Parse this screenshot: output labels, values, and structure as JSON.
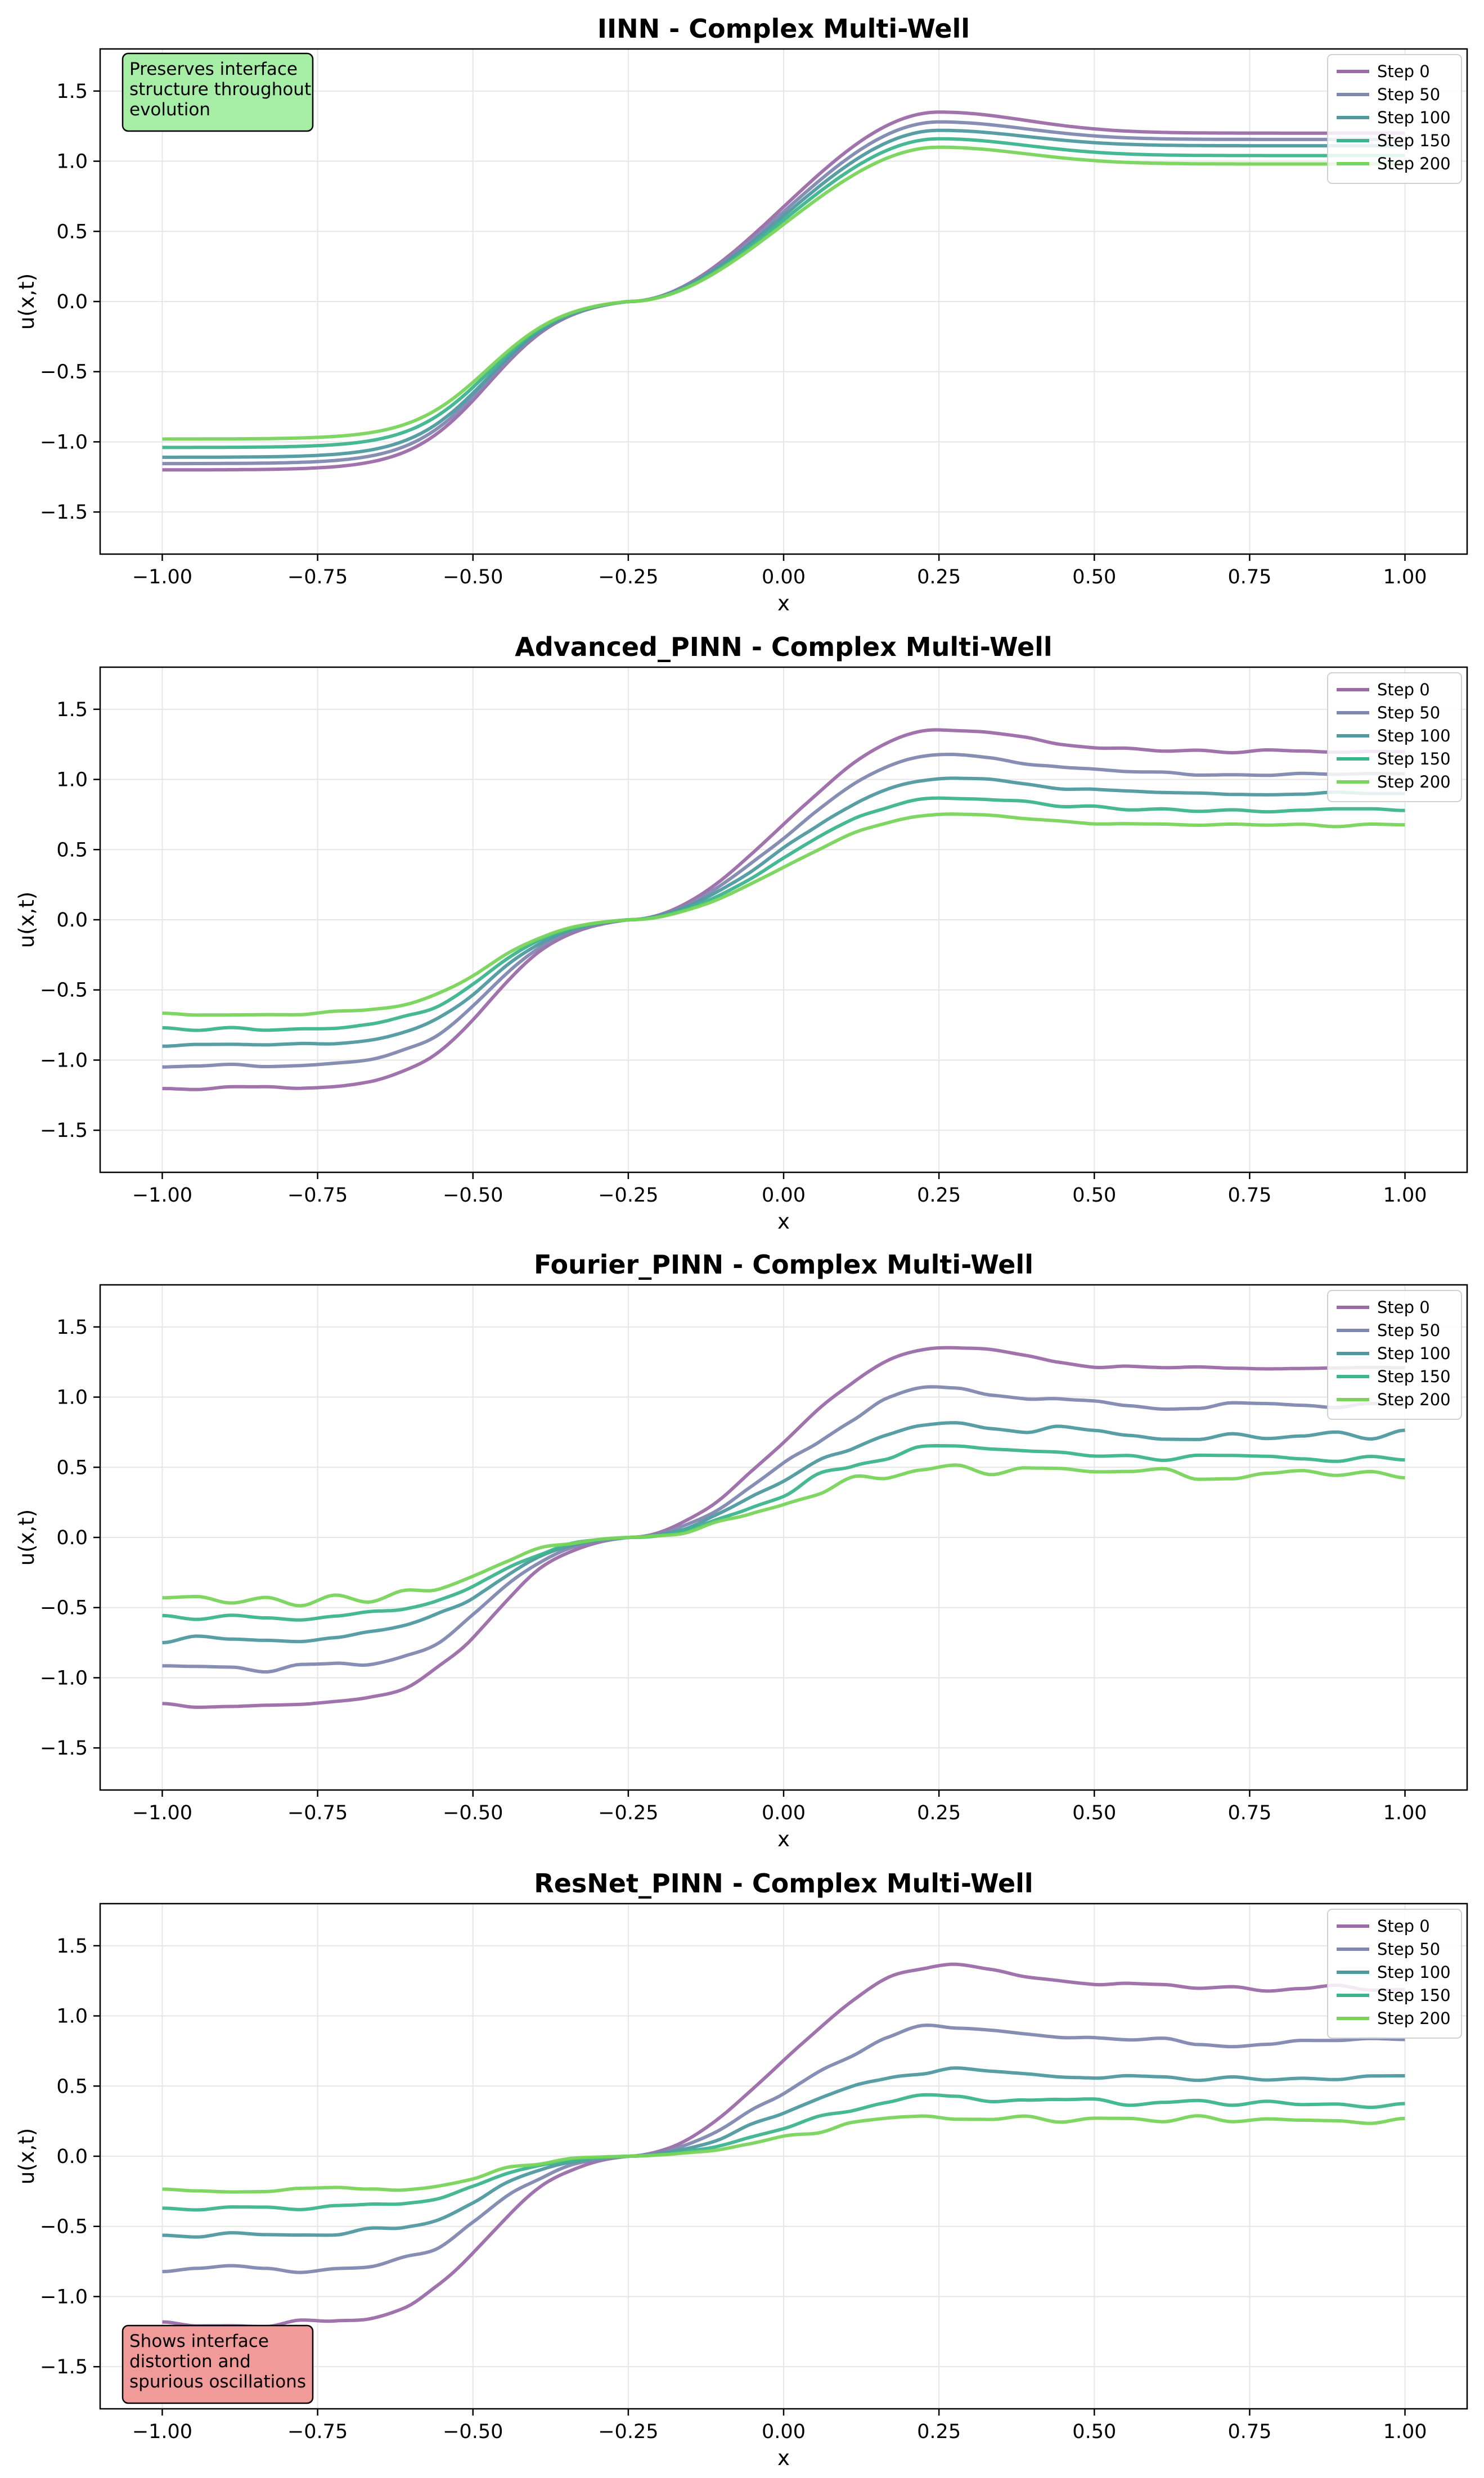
{
  "colors": {
    "Step 0": "#9b6ba8",
    "Step 50": "#8088b0",
    "Step 100": "#4e9aa0",
    "Step 150": "#3cb48e",
    "Step 200": "#78d45a",
    "note_good": "#a6eea6",
    "note_bad": "#f19a9a",
    "grid": "#e6e6e6"
  },
  "chart_data": [
    {
      "type": "line",
      "title": "IINN - Complex Multi-Well",
      "xlabel": "x",
      "ylabel": "u(x,t)",
      "xlim": [
        -1.1,
        1.1
      ],
      "ylim": [
        -1.8,
        1.8
      ],
      "xticks": [
        -1.0,
        -0.75,
        -0.5,
        -0.25,
        0.0,
        0.25,
        0.5,
        0.75,
        1.0
      ],
      "xtick_labels": [
        "−1.00",
        "−0.75",
        "−0.50",
        "−0.25",
        "0.00",
        "0.25",
        "0.50",
        "0.75",
        "1.00"
      ],
      "yticks": [
        -1.5,
        -1.0,
        -0.5,
        0.0,
        0.5,
        1.0,
        1.5
      ],
      "ytick_labels": [
        "−1.5",
        "−1.0",
        "−0.5",
        "0.0",
        "0.5",
        "1.0",
        "1.5"
      ],
      "grid": true,
      "legend": "top-right",
      "annotation": {
        "text": [
          "Preserves interface",
          "structure throughout",
          "evolution"
        ],
        "position": "top-left",
        "style": "good"
      },
      "series": [
        {
          "name": "Step 0",
          "left": -1.2,
          "right": 1.2,
          "peak": 1.35,
          "noise": 0
        },
        {
          "name": "Step 50",
          "left": -1.155,
          "right": 1.155,
          "peak": 1.28,
          "noise": 0
        },
        {
          "name": "Step 100",
          "left": -1.11,
          "right": 1.11,
          "peak": 1.22,
          "noise": 0
        },
        {
          "name": "Step 150",
          "left": -1.04,
          "right": 1.04,
          "peak": 1.16,
          "noise": 0
        },
        {
          "name": "Step 200",
          "left": -0.98,
          "right": 0.98,
          "peak": 1.1,
          "noise": 0
        }
      ]
    },
    {
      "type": "line",
      "title": "Advanced_PINN - Complex Multi-Well",
      "xlabel": "x",
      "ylabel": "u(x,t)",
      "xlim": [
        -1.1,
        1.1
      ],
      "ylim": [
        -1.8,
        1.8
      ],
      "xticks": [
        -1.0,
        -0.75,
        -0.5,
        -0.25,
        0.0,
        0.25,
        0.5,
        0.75,
        1.0
      ],
      "xtick_labels": [
        "−1.00",
        "−0.75",
        "−0.50",
        "−0.25",
        "0.00",
        "0.25",
        "0.50",
        "0.75",
        "1.00"
      ],
      "yticks": [
        -1.5,
        -1.0,
        -0.5,
        0.0,
        0.5,
        1.0,
        1.5
      ],
      "ytick_labels": [
        "−1.5",
        "−1.0",
        "−0.5",
        "0.0",
        "0.5",
        "1.0",
        "1.5"
      ],
      "grid": true,
      "legend": "top-right",
      "series": [
        {
          "name": "Step 0",
          "left": -1.2,
          "right": 1.2,
          "peak": 1.35,
          "noise": 0.004
        },
        {
          "name": "Step 50",
          "left": -1.04,
          "right": 1.04,
          "peak": 1.17,
          "noise": 0.004
        },
        {
          "name": "Step 100",
          "left": -0.9,
          "right": 0.9,
          "peak": 1.01,
          "noise": 0.004
        },
        {
          "name": "Step 150",
          "left": -0.78,
          "right": 0.78,
          "peak": 0.87,
          "noise": 0.004
        },
        {
          "name": "Step 200",
          "left": -0.67,
          "right": 0.67,
          "peak": 0.75,
          "noise": 0.004
        }
      ]
    },
    {
      "type": "line",
      "title": "Fourier_PINN - Complex Multi-Well",
      "xlabel": "x",
      "ylabel": "u(x,t)",
      "xlim": [
        -1.1,
        1.1
      ],
      "ylim": [
        -1.8,
        1.8
      ],
      "xticks": [
        -1.0,
        -0.75,
        -0.5,
        -0.25,
        0.0,
        0.25,
        0.5,
        0.75,
        1.0
      ],
      "xtick_labels": [
        "−1.00",
        "−0.75",
        "−0.50",
        "−0.25",
        "0.00",
        "0.25",
        "0.50",
        "0.75",
        "1.00"
      ],
      "yticks": [
        -1.5,
        -1.0,
        -0.5,
        0.0,
        0.5,
        1.0,
        1.5
      ],
      "ytick_labels": [
        "−1.5",
        "−1.0",
        "−0.5",
        "0.0",
        "0.5",
        "1.0",
        "1.5"
      ],
      "grid": true,
      "legend": "top-right",
      "series": [
        {
          "name": "Step 0",
          "left": -1.2,
          "right": 1.2,
          "peak": 1.35,
          "noise": 0.006
        },
        {
          "name": "Step 50",
          "left": -0.94,
          "right": 0.94,
          "peak": 1.05,
          "noise": 0.01
        },
        {
          "name": "Step 100",
          "left": -0.73,
          "right": 0.73,
          "peak": 0.81,
          "noise": 0.012
        },
        {
          "name": "Step 150",
          "left": -0.58,
          "right": 0.57,
          "peak": 0.63,
          "noise": 0.014
        },
        {
          "name": "Step 200",
          "left": -0.46,
          "right": 0.45,
          "peak": 0.49,
          "noise": 0.014
        }
      ]
    },
    {
      "type": "line",
      "title": "ResNet_PINN - Complex Multi-Well",
      "xlabel": "x",
      "ylabel": "u(x,t)",
      "xlim": [
        -1.1,
        1.1
      ],
      "ylim": [
        -1.8,
        1.8
      ],
      "xticks": [
        -1.0,
        -0.75,
        -0.5,
        -0.25,
        0.0,
        0.25,
        0.5,
        0.75,
        1.0
      ],
      "xtick_labels": [
        "−1.00",
        "−0.75",
        "−0.50",
        "−0.25",
        "0.00",
        "0.25",
        "0.50",
        "0.75",
        "1.00"
      ],
      "yticks": [
        -1.5,
        -1.0,
        -0.5,
        0.0,
        0.5,
        1.0,
        1.5
      ],
      "ytick_labels": [
        "−1.5",
        "−1.0",
        "−0.5",
        "0.0",
        "0.5",
        "1.0",
        "1.5"
      ],
      "grid": true,
      "legend": "top-right",
      "annotation": {
        "text": [
          "Shows interface",
          "distortion and",
          "spurious oscillations"
        ],
        "position": "bottom-left",
        "style": "bad"
      },
      "series": [
        {
          "name": "Step 0",
          "left": -1.2,
          "right": 1.2,
          "peak": 1.35,
          "noise": 0.008
        },
        {
          "name": "Step 50",
          "left": -0.81,
          "right": 0.81,
          "peak": 0.91,
          "noise": 0.01
        },
        {
          "name": "Step 100",
          "left": -0.55,
          "right": 0.55,
          "peak": 0.62,
          "noise": 0.01
        },
        {
          "name": "Step 150",
          "left": -0.37,
          "right": 0.37,
          "peak": 0.42,
          "noise": 0.01
        },
        {
          "name": "Step 200",
          "left": -0.25,
          "right": 0.26,
          "peak": 0.28,
          "noise": 0.01
        }
      ]
    }
  ]
}
